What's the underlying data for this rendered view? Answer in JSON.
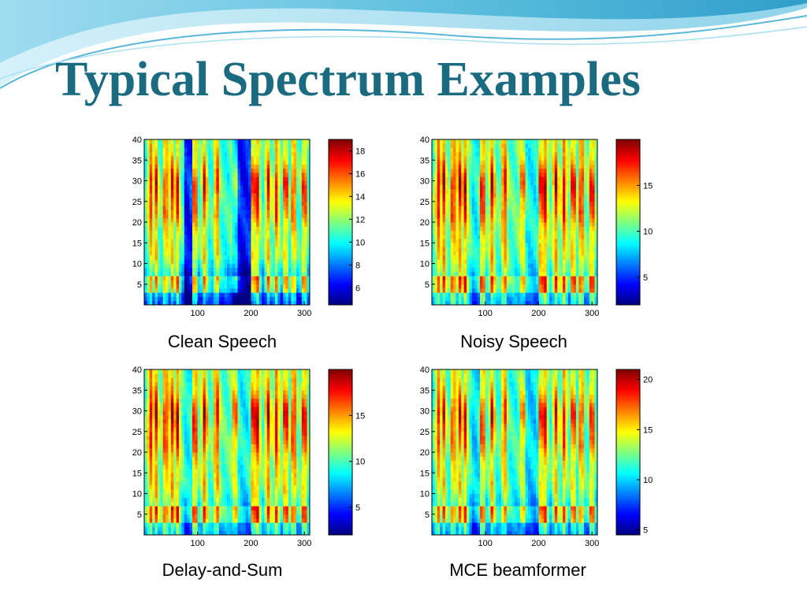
{
  "slide": {
    "title": "Typical Spectrum Examples"
  },
  "colors": {
    "title": "#1a6a80",
    "accent": "#3aa6c8"
  },
  "chart_data": [
    {
      "type": "heatmap",
      "caption": "Clean Speech",
      "xlim": [
        0,
        310
      ],
      "ylim": [
        0,
        40
      ],
      "x_ticks": [
        100,
        200,
        300
      ],
      "y_ticks": [
        5,
        10,
        15,
        20,
        25,
        30,
        35,
        40
      ],
      "colorbar": {
        "range": [
          4.5,
          19
        ],
        "ticks": [
          6,
          8,
          10,
          12,
          14,
          16,
          18
        ]
      }
    },
    {
      "type": "heatmap",
      "caption": "Noisy Speech",
      "xlim": [
        0,
        310
      ],
      "ylim": [
        0,
        40
      ],
      "x_ticks": [
        100,
        200,
        300
      ],
      "y_ticks": [
        5,
        10,
        15,
        20,
        25,
        30,
        35,
        40
      ],
      "colorbar": {
        "range": [
          2,
          20
        ],
        "ticks": [
          5,
          10,
          15
        ]
      }
    },
    {
      "type": "heatmap",
      "caption": "Delay-and-Sum",
      "xlim": [
        0,
        310
      ],
      "ylim": [
        0,
        40
      ],
      "x_ticks": [
        100,
        200,
        300
      ],
      "y_ticks": [
        5,
        10,
        15,
        20,
        25,
        30,
        35,
        40
      ],
      "colorbar": {
        "range": [
          2,
          20
        ],
        "ticks": [
          5,
          10,
          15
        ]
      }
    },
    {
      "type": "heatmap",
      "caption": "MCE beamformer",
      "xlim": [
        0,
        310
      ],
      "ylim": [
        0,
        40
      ],
      "x_ticks": [
        100,
        200,
        300
      ],
      "y_ticks": [
        5,
        10,
        15,
        20,
        25,
        30,
        35,
        40
      ],
      "colorbar": {
        "range": [
          4.5,
          21
        ],
        "ticks": [
          5,
          10,
          15,
          20
        ]
      }
    }
  ]
}
